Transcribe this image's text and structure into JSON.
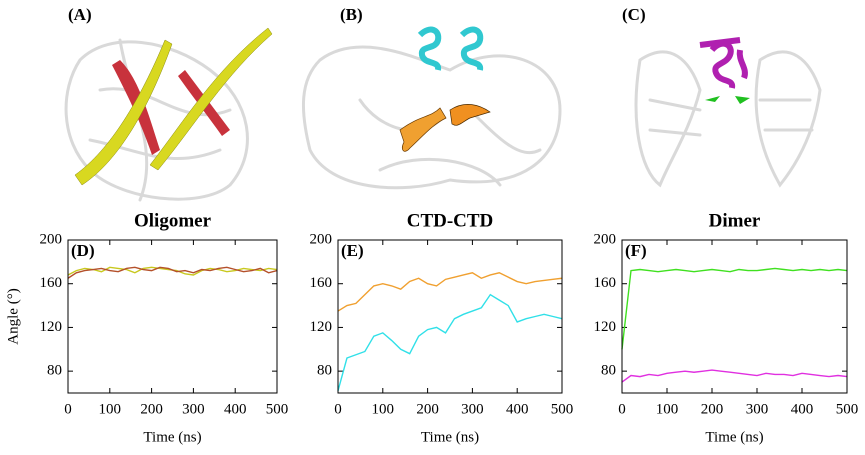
{
  "panels": [
    {
      "label": "(A)"
    },
    {
      "label": "(B)"
    },
    {
      "label": "(C)"
    }
  ],
  "chart_data": [
    {
      "type": "line",
      "title": "Oligomer",
      "panel_label": "(D)",
      "xlabel": "Time (ns)",
      "ylabel": "Angle (°)",
      "x": [
        0,
        20,
        40,
        60,
        80,
        100,
        120,
        140,
        160,
        180,
        200,
        220,
        240,
        260,
        280,
        300,
        320,
        340,
        360,
        380,
        400,
        420,
        440,
        460,
        480,
        500
      ],
      "series": [
        {
          "color": "#c8c81e",
          "values": [
            168,
            172,
            174,
            173,
            171,
            175,
            174,
            173,
            170,
            174,
            175,
            174,
            173,
            172,
            169,
            168,
            172,
            174,
            173,
            171,
            172,
            174,
            173,
            172,
            174,
            173
          ]
        },
        {
          "color": "#b4502a",
          "values": [
            165,
            170,
            172,
            173,
            174,
            172,
            171,
            174,
            175,
            173,
            172,
            175,
            174,
            171,
            172,
            170,
            173,
            172,
            174,
            175,
            173,
            171,
            172,
            174,
            170,
            172
          ]
        }
      ],
      "xlim": [
        0,
        500
      ],
      "ylim": [
        60,
        200
      ],
      "xticks": [
        0,
        100,
        200,
        300,
        400,
        500
      ],
      "yticks": [
        80,
        120,
        160,
        200
      ]
    },
    {
      "type": "line",
      "title": "CTD-CTD",
      "panel_label": "(E)",
      "xlabel": "Time (ns)",
      "x": [
        0,
        20,
        40,
        60,
        80,
        100,
        120,
        140,
        160,
        180,
        200,
        220,
        240,
        260,
        280,
        300,
        320,
        340,
        360,
        380,
        400,
        420,
        440,
        460,
        480,
        500
      ],
      "series": [
        {
          "color": "#f0a030",
          "values": [
            135,
            140,
            142,
            150,
            158,
            160,
            158,
            155,
            162,
            165,
            160,
            158,
            164,
            166,
            168,
            170,
            165,
            168,
            170,
            166,
            162,
            160,
            162,
            163,
            164,
            165
          ]
        },
        {
          "color": "#30e0e8",
          "values": [
            62,
            92,
            95,
            98,
            112,
            115,
            108,
            100,
            96,
            112,
            118,
            120,
            115,
            128,
            132,
            135,
            138,
            150,
            145,
            140,
            125,
            128,
            130,
            132,
            130,
            128
          ]
        }
      ],
      "xlim": [
        0,
        500
      ],
      "ylim": [
        60,
        200
      ],
      "xticks": [
        0,
        100,
        200,
        300,
        400,
        500
      ],
      "yticks": [
        80,
        120,
        160,
        200
      ]
    },
    {
      "type": "line",
      "title": "Dimer",
      "panel_label": "(F)",
      "xlabel": "Time (ns)",
      "x": [
        0,
        20,
        40,
        60,
        80,
        100,
        120,
        140,
        160,
        180,
        200,
        220,
        240,
        260,
        280,
        300,
        320,
        340,
        360,
        380,
        400,
        420,
        440,
        460,
        480,
        500
      ],
      "series": [
        {
          "color": "#40e020",
          "values": [
            100,
            172,
            173,
            172,
            171,
            172,
            173,
            172,
            171,
            172,
            173,
            172,
            171,
            173,
            172,
            172,
            173,
            174,
            173,
            172,
            173,
            172,
            173,
            172,
            173,
            172
          ]
        },
        {
          "color": "#e030e0",
          "values": [
            70,
            76,
            75,
            77,
            76,
            78,
            79,
            80,
            79,
            80,
            81,
            80,
            79,
            78,
            77,
            76,
            78,
            77,
            77,
            76,
            78,
            77,
            76,
            75,
            76,
            75
          ]
        }
      ],
      "xlim": [
        0,
        500
      ],
      "ylim": [
        60,
        200
      ],
      "xticks": [
        0,
        100,
        200,
        300,
        400,
        500
      ],
      "yticks": [
        80,
        120,
        160,
        200
      ]
    }
  ]
}
